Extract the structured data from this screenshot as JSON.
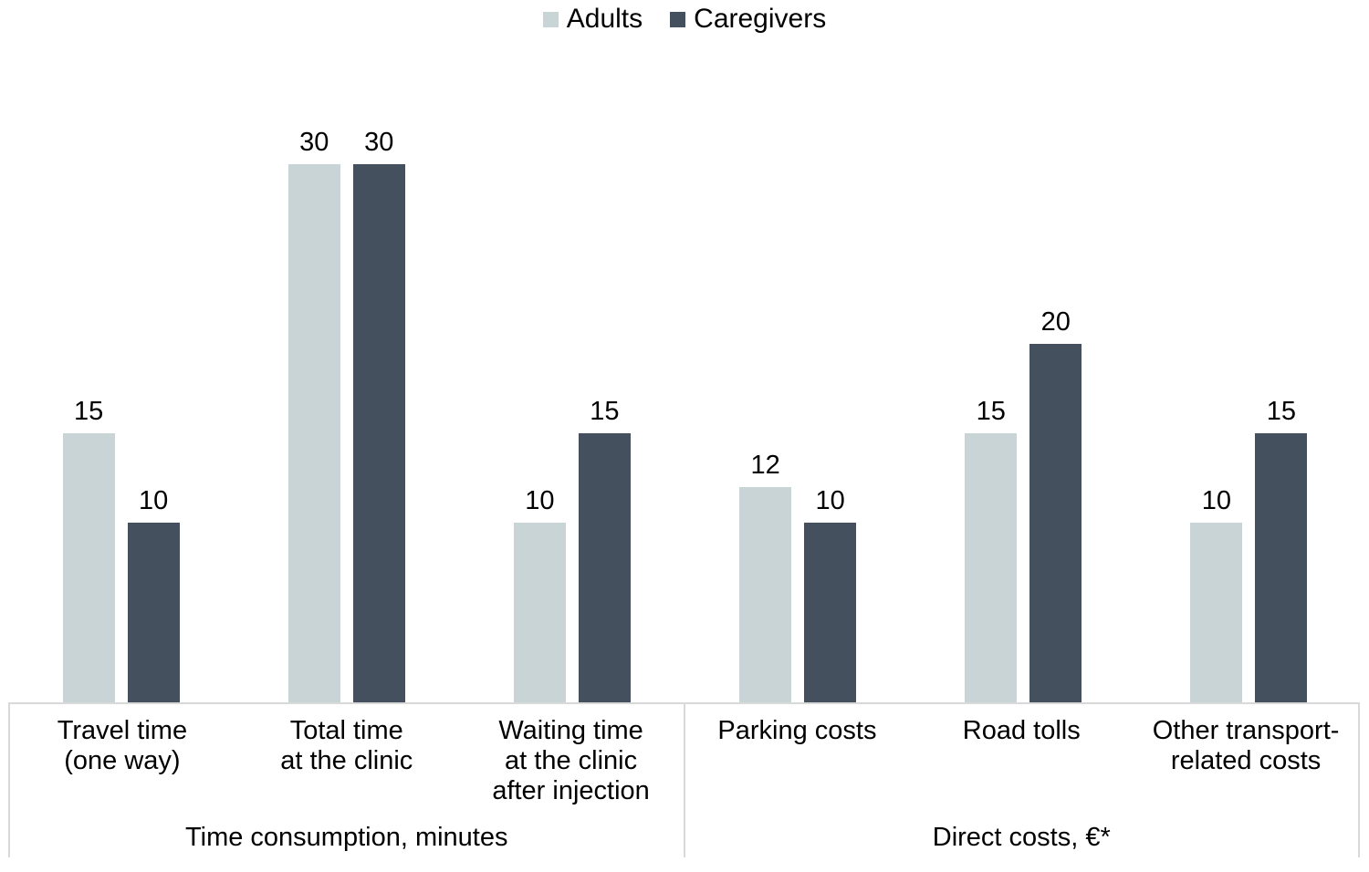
{
  "chart_data": {
    "type": "bar",
    "title": "",
    "legend_position": "top-center",
    "value_axis_visible": false,
    "gridlines": false,
    "bar_value_labels": true,
    "axis_line_color": "#D9D9D9",
    "ylim": [
      0,
      35
    ],
    "groups": [
      {
        "label": "Time consumption, minutes",
        "categories": [
          [
            "Travel time",
            "(one way)"
          ],
          [
            "Total time",
            "at the clinic"
          ],
          [
            "Waiting time",
            "at the clinic",
            "after injection"
          ]
        ]
      },
      {
        "label": "Direct costs, €*",
        "categories": [
          [
            "Parking costs"
          ],
          [
            "Road tolls"
          ],
          [
            "Other transport-",
            "related costs"
          ]
        ]
      }
    ],
    "series": [
      {
        "name": "Adults",
        "color": "#C8D4D6",
        "values": [
          15,
          30,
          10,
          12,
          15,
          10
        ]
      },
      {
        "name": "Caregivers",
        "color": "#45505E",
        "values": [
          10,
          30,
          15,
          10,
          20,
          15
        ]
      }
    ]
  }
}
